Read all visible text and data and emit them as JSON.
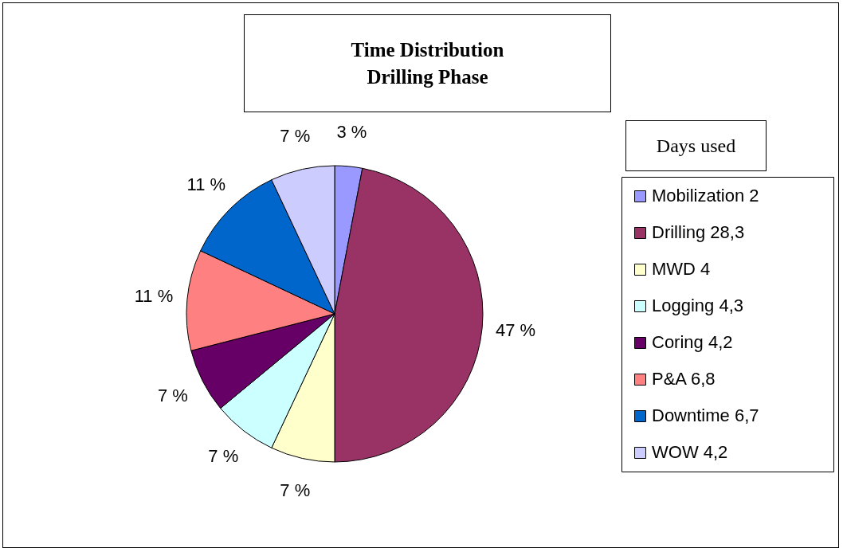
{
  "chart_data": {
    "type": "pie",
    "title": "Time Distribution\nDrilling Phase",
    "legend_title": "Days used",
    "categories": [
      "Mobilization 2",
      "Drilling 28,3",
      "MWD 4",
      "Logging 4,3",
      "Coring 4,2",
      "P&A 6,8",
      "Downtime 6,7",
      "WOW 4,2"
    ],
    "values": [
      3,
      47,
      7,
      7,
      7,
      11,
      11,
      7
    ],
    "value_labels": [
      "3 %",
      "47 %",
      "7 %",
      "7 %",
      "7 %",
      "11 %",
      "11 %",
      "7 %"
    ],
    "colors": [
      "#9999ff",
      "#993366",
      "#ffffcc",
      "#ccffff",
      "#660066",
      "#ff8080",
      "#0066cc",
      "#ccccff"
    ],
    "legend": "right"
  }
}
